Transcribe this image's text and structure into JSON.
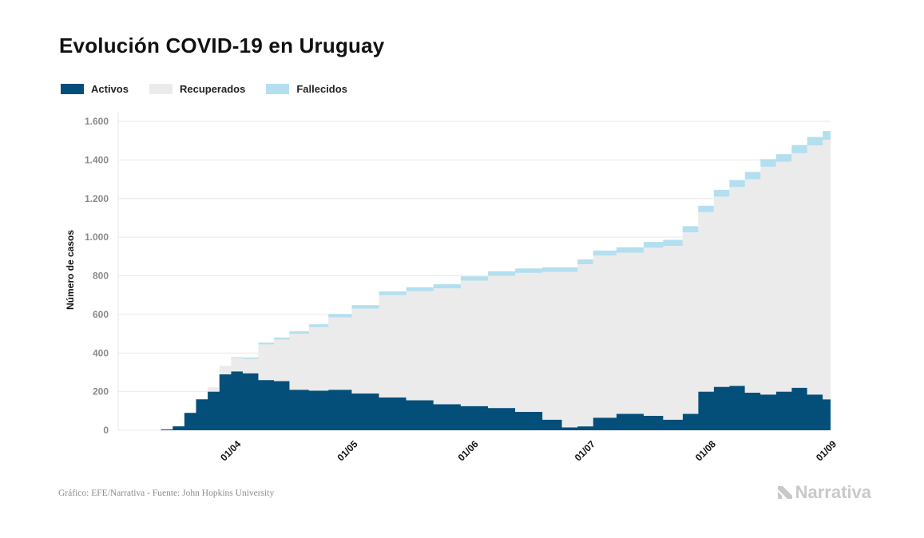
{
  "title": "Evolución COVID-19 en Uruguay",
  "legend": [
    {
      "label": "Activos",
      "color": "#044f79"
    },
    {
      "label": "Recuperados",
      "color": "#ebebeb"
    },
    {
      "label": "Fallecidos",
      "color": "#b3dfef"
    }
  ],
  "footer": {
    "source": "Gráfico: EFE/Narrativa - Fuente: John Hopkins University",
    "brand": "Narrativa"
  },
  "chart_data": {
    "type": "area",
    "stacked": true,
    "ylabel": "Número de casos",
    "xlabel": "",
    "ylim": [
      0,
      1600
    ],
    "yticks": [
      0,
      200,
      400,
      600,
      800,
      1000,
      1200,
      1400,
      1600
    ],
    "ytick_labels": [
      "0",
      "200",
      "400",
      "600",
      "800",
      "1.000",
      "1.200",
      "1.400",
      "1.600"
    ],
    "x_range": [
      "2020-03-02",
      "2020-09-01"
    ],
    "xticks": [
      "2020-04-01",
      "2020-05-01",
      "2020-06-01",
      "2020-07-01",
      "2020-08-01",
      "2020-09-01"
    ],
    "xtick_labels": [
      "01/04",
      "01/05",
      "01/06",
      "01/07",
      "01/08",
      "01/09"
    ],
    "grid": true,
    "legend_position": "top-left",
    "x": [
      "2020-03-13",
      "2020-03-16",
      "2020-03-19",
      "2020-03-22",
      "2020-03-25",
      "2020-03-28",
      "2020-03-31",
      "2020-04-03",
      "2020-04-07",
      "2020-04-11",
      "2020-04-15",
      "2020-04-20",
      "2020-04-25",
      "2020-05-01",
      "2020-05-08",
      "2020-05-15",
      "2020-05-22",
      "2020-05-29",
      "2020-06-05",
      "2020-06-12",
      "2020-06-19",
      "2020-06-24",
      "2020-06-28",
      "2020-07-02",
      "2020-07-08",
      "2020-07-15",
      "2020-07-20",
      "2020-07-25",
      "2020-07-29",
      "2020-08-02",
      "2020-08-06",
      "2020-08-10",
      "2020-08-14",
      "2020-08-18",
      "2020-08-22",
      "2020-08-26",
      "2020-08-30",
      "2020-09-01"
    ],
    "series": [
      {
        "name": "Activos",
        "color": "#044f79",
        "values": [
          4,
          20,
          90,
          160,
          200,
          290,
          305,
          295,
          260,
          255,
          210,
          205,
          210,
          190,
          170,
          155,
          135,
          125,
          115,
          95,
          55,
          15,
          20,
          65,
          85,
          75,
          55,
          85,
          200,
          225,
          230,
          195,
          185,
          200,
          220,
          185,
          160,
          140
        ]
      },
      {
        "name": "Recuperados",
        "color": "#ebebeb",
        "values": [
          0,
          0,
          0,
          0,
          20,
          40,
          70,
          75,
          185,
          215,
          290,
          330,
          375,
          440,
          530,
          565,
          600,
          650,
          685,
          720,
          765,
          805,
          840,
          840,
          835,
          870,
          900,
          940,
          930,
          985,
          1030,
          1105,
          1180,
          1190,
          1215,
          1290,
          1345,
          1410
        ]
      },
      {
        "name": "Fallecidos",
        "color": "#b3dfef",
        "values": [
          0,
          0,
          0,
          0,
          1,
          2,
          4,
          7,
          9,
          10,
          12,
          14,
          17,
          18,
          19,
          20,
          21,
          22,
          23,
          23,
          24,
          24,
          25,
          26,
          28,
          30,
          31,
          32,
          33,
          35,
          36,
          38,
          39,
          40,
          42,
          44,
          45,
          46
        ]
      }
    ]
  }
}
